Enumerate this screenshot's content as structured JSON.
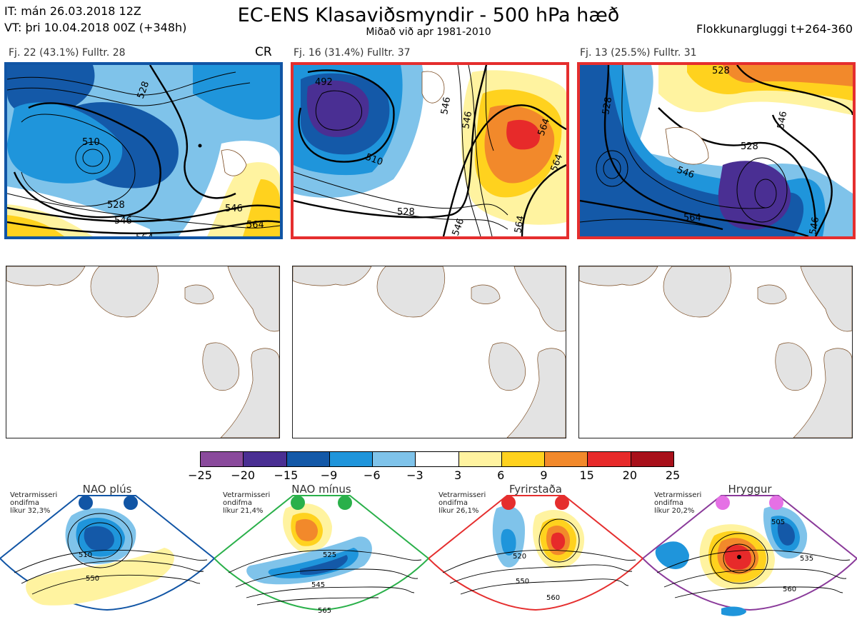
{
  "header": {
    "it_line": "IT: mán 26.03.2018 12Z",
    "vt_line": "VT: þri 10.04.2018 00Z  (+348h)",
    "title": "EC-ENS Klasaviðsmyndir - 500 hPa hæð",
    "subtitle": "Miðað við apr 1981-2010",
    "window": "Flokkunargluggi t+264-360"
  },
  "panels": [
    {
      "label": "Fj. 22 (43.1%)   Fulltr. 28",
      "tag": "CR",
      "frame_color": "#1155a5",
      "contour_labels": [
        "510",
        "528",
        "528",
        "546",
        "546",
        "564",
        "564"
      ]
    },
    {
      "label": "Fj. 16 (31.4%)   Fulltr. 37",
      "tag": "",
      "frame_color": "#e52e2e",
      "contour_labels": [
        "492",
        "510",
        "546",
        "528",
        "546",
        "564",
        "564",
        "546",
        "564"
      ]
    },
    {
      "label": "Fj. 13 (25.5%)   Fulltr. 31",
      "tag": "",
      "frame_color": "#e52e2e",
      "contour_labels": [
        "528",
        "528",
        "546",
        "528",
        "546",
        "564",
        "546"
      ]
    }
  ],
  "colorbar": {
    "ticks": [
      "−25",
      "−20",
      "−15",
      "−9",
      "−6",
      "−3",
      "3",
      "6",
      "9",
      "15",
      "20",
      "25"
    ],
    "colors": [
      "#8a4a9c",
      "#4a2f93",
      "#1459a8",
      "#1f95db",
      "#7fc3ea",
      "#ffffff",
      "#fff3a0",
      "#ffd21e",
      "#f2892b",
      "#e72a2a",
      "#a8101a"
    ]
  },
  "regimes": [
    {
      "title": "NAO plús",
      "note": [
        "Vetrarmisseri",
        "ondifma",
        "líkur 32,3%"
      ],
      "marker_color": "#1155a5",
      "frame_color": "#1155a5",
      "labels": [
        "510",
        "550"
      ]
    },
    {
      "title": "NAO mínus",
      "note": [
        "Vetrarmisseri",
        "ondifma",
        "líkur 21,4%"
      ],
      "marker_color": "#2ab04a",
      "frame_color": "#2ab04a",
      "labels": [
        "525",
        "545",
        "565"
      ]
    },
    {
      "title": "Fyrirstaða",
      "note": [
        "Vetrarmisseri",
        "ondifma",
        "líkur 26,1%"
      ],
      "marker_color": "#e52e2e",
      "frame_color": "#e52e2e",
      "labels": [
        "520",
        "550",
        "560"
      ]
    },
    {
      "title": "Hryggur",
      "note": [
        "Vetrarmisseri",
        "ondifma",
        "líkur 20,2%"
      ],
      "marker_color": "#e570e5",
      "frame_color": "#8a3a9a",
      "labels": [
        "505",
        "535",
        "560"
      ]
    }
  ]
}
